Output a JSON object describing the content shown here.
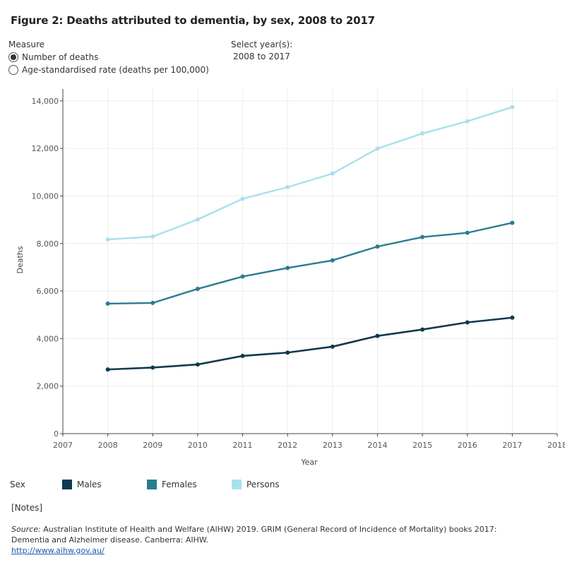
{
  "title": "Figure 2: Deaths attributed to dementia, by sex, 2008 to 2017",
  "measure": {
    "label": "Measure",
    "options": [
      {
        "label": "Number of deaths",
        "selected": true
      },
      {
        "label": "Age-standardised rate (deaths per 100,000)",
        "selected": false
      }
    ]
  },
  "year_select": {
    "label": "Select year(s):",
    "value": "2008 to 2017"
  },
  "legend": {
    "label": "Sex",
    "items": [
      {
        "name": "Males",
        "color": "#0f3a4f"
      },
      {
        "name": "Females",
        "color": "#2a7c91"
      },
      {
        "name": "Persons",
        "color": "#a8e0ee"
      }
    ]
  },
  "notes_label": "[Notes]",
  "source": {
    "label": "Source:",
    "text": "Australian Institute of Health and Welfare (AIHW) 2019. GRIM (General Record of Incidence of Mortality) books 2017: Dementia and Alzheimer disease. Canberra: AIHW.",
    "link": "http://www.aihw.gov.au/"
  },
  "chart_data": {
    "type": "line",
    "title": "Figure 2: Deaths attributed to dementia, by sex, 2008 to 2017",
    "xlabel": "Year",
    "ylabel": "Deaths",
    "x": [
      2008,
      2009,
      2010,
      2011,
      2012,
      2013,
      2014,
      2015,
      2016,
      2017
    ],
    "x_ticks": [
      2007,
      2008,
      2009,
      2010,
      2011,
      2012,
      2013,
      2014,
      2015,
      2016,
      2017,
      2018
    ],
    "xlim": [
      2007,
      2018
    ],
    "y_ticks": [
      0,
      2000,
      4000,
      6000,
      8000,
      10000,
      12000,
      14000
    ],
    "y_tick_labels": [
      "0",
      "2,000",
      "4,000",
      "6,000",
      "8,000",
      "10,000",
      "12,000",
      "14,000"
    ],
    "ylim": [
      0,
      14500
    ],
    "grid": true,
    "series": [
      {
        "name": "Males",
        "color": "#0f3a4f",
        "values": [
          2700,
          2780,
          2910,
          3270,
          3410,
          3660,
          4110,
          4380,
          4680,
          4880
        ]
      },
      {
        "name": "Females",
        "color": "#2a7c91",
        "values": [
          5470,
          5500,
          6090,
          6610,
          6970,
          7290,
          7870,
          8270,
          8450,
          8870
        ]
      },
      {
        "name": "Persons",
        "color": "#a8e0ee",
        "values": [
          8170,
          8290,
          9010,
          9880,
          10370,
          10940,
          11990,
          12630,
          13140,
          13740
        ]
      }
    ]
  }
}
